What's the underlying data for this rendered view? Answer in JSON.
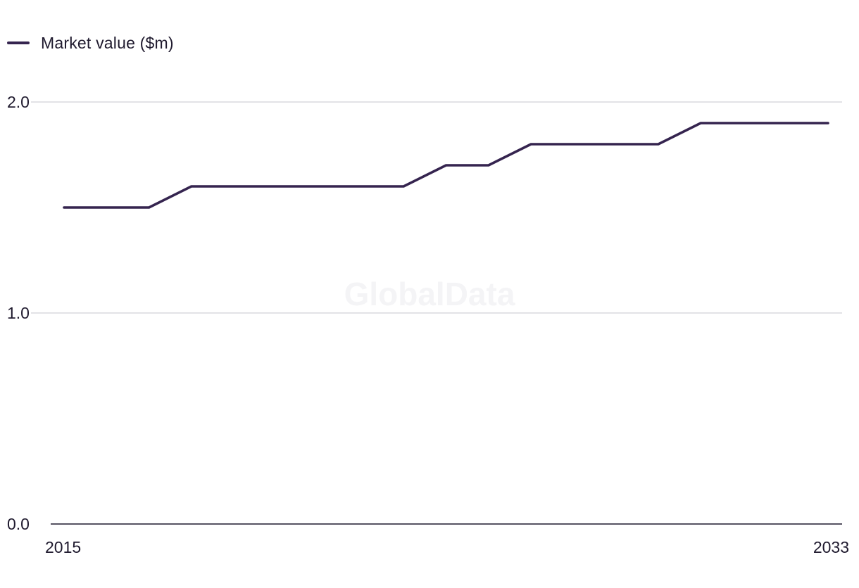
{
  "legend": {
    "label": "Market value ($m)"
  },
  "watermark": "GlobalData",
  "colors": {
    "series": "#35244f",
    "grid": "#d9d9dd",
    "axis": "#1f1a2e",
    "text": "#1f1a2e"
  },
  "chart_data": {
    "type": "line",
    "title": "",
    "xlabel": "",
    "ylabel": "",
    "x": [
      2015,
      2016,
      2017,
      2018,
      2019,
      2020,
      2021,
      2022,
      2023,
      2024,
      2025,
      2026,
      2027,
      2028,
      2029,
      2030,
      2031,
      2032,
      2033
    ],
    "x_tick_labels": [
      "2015",
      "2033"
    ],
    "series": [
      {
        "name": "Market value ($m)",
        "values": [
          1.5,
          1.5,
          1.5,
          1.6,
          1.6,
          1.6,
          1.6,
          1.6,
          1.6,
          1.7,
          1.7,
          1.8,
          1.8,
          1.8,
          1.8,
          1.9,
          1.9,
          1.9,
          1.9
        ]
      }
    ],
    "ylim": [
      0,
      2
    ],
    "y_ticks": [
      0,
      1,
      2
    ],
    "y_tick_labels": [
      "0.0",
      "1.0",
      "2.0"
    ],
    "grid": true,
    "legend_position": "top-left"
  }
}
